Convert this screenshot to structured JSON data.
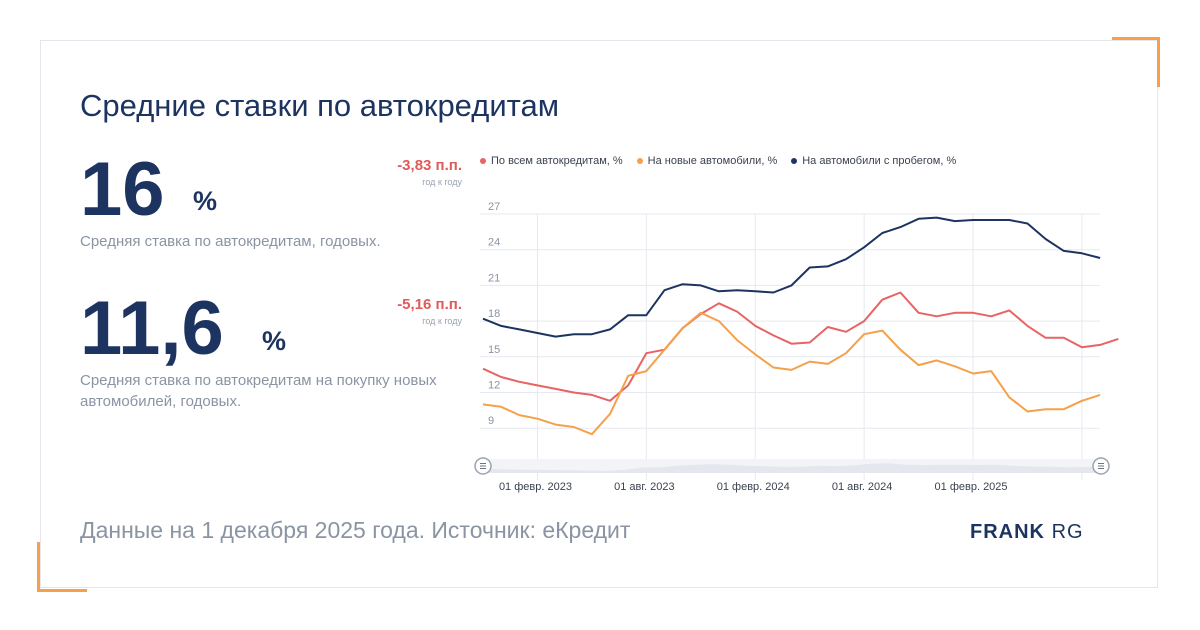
{
  "title": "Средние ставки по автокредитам",
  "stats": [
    {
      "value": "16",
      "unit": "%",
      "caption": "Средняя ставка по автокредитам, годовых.",
      "delta": "-3,83 п.п.",
      "delta_note": "год к году"
    },
    {
      "value": "11,6",
      "unit": "%",
      "caption": "Средняя ставка по автокредитам на покупку новых автомобилей, годовых.",
      "delta": "-5,16 п.п.",
      "delta_note": "год к году"
    }
  ],
  "footer": "Данные на 1 декабря 2025 года. Источник: еКредит",
  "logo": {
    "bold": "FRANK",
    "light": "RG"
  },
  "chart_data": {
    "type": "line",
    "ylim": [
      7,
      27
    ],
    "yticks": [
      9,
      12,
      15,
      18,
      21,
      24,
      27
    ],
    "xticks": [
      "01 февр. 2023",
      "01 авг. 2023",
      "01 февр. 2024",
      "01 авг. 2024",
      "01 февр. 2025"
    ],
    "x_start": "2022-11",
    "grid": true,
    "legend_position": "top",
    "series": [
      {
        "name": "По всем автокредитам, %",
        "color": "#e86363",
        "values": [
          14.0,
          13.3,
          12.9,
          12.6,
          12.3,
          12.0,
          11.8,
          11.3,
          12.6,
          15.3,
          15.6,
          17.4,
          18.6,
          19.5,
          18.8,
          17.6,
          16.8,
          16.1,
          16.2,
          17.5,
          17.1,
          18.0,
          19.8,
          20.4,
          18.7,
          18.4,
          18.7,
          18.7,
          18.4,
          18.9,
          17.6,
          16.6,
          16.6,
          15.8,
          16.0,
          16.5
        ]
      },
      {
        "name": "На новые автомобили, %",
        "color": "#f5a04a",
        "values": [
          11.0,
          10.8,
          10.1,
          9.8,
          9.3,
          9.1,
          8.5,
          10.2,
          13.4,
          13.8,
          15.6,
          17.4,
          18.7,
          18.0,
          16.4,
          15.2,
          14.1,
          13.9,
          14.6,
          14.4,
          15.3,
          16.9,
          17.2,
          15.6,
          14.3,
          14.7,
          14.2,
          13.6,
          13.8,
          11.6,
          10.4,
          10.6,
          10.6,
          11.3,
          11.8
        ]
      },
      {
        "name": "На автомобили с пробегом, %",
        "color": "#1d3461",
        "values": [
          18.2,
          17.6,
          17.3,
          17.0,
          16.7,
          16.9,
          16.9,
          17.3,
          18.5,
          18.5,
          20.6,
          21.1,
          21.0,
          20.5,
          20.6,
          20.5,
          20.4,
          21.0,
          22.5,
          22.6,
          23.2,
          24.2,
          25.4,
          25.9,
          26.6,
          26.7,
          26.4,
          26.5,
          26.5,
          26.5,
          26.2,
          24.9,
          23.9,
          23.7,
          23.3
        ]
      }
    ]
  }
}
